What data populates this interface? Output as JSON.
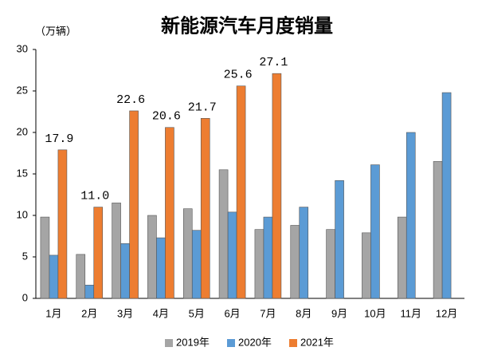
{
  "chart_data": {
    "type": "bar",
    "title": "新能源汽车月度销量",
    "y_label": "（万辆）",
    "categories": [
      "1月",
      "2月",
      "3月",
      "4月",
      "5月",
      "6月",
      "7月",
      "8月",
      "9月",
      "10月",
      "11月",
      "12月"
    ],
    "series": [
      {
        "name": "2019年",
        "color": "#a5a5a5",
        "values": [
          9.8,
          5.3,
          11.5,
          10.0,
          10.8,
          15.5,
          8.3,
          8.8,
          8.3,
          7.9,
          9.8,
          16.5
        ]
      },
      {
        "name": "2020年",
        "color": "#5b9bd5",
        "values": [
          5.2,
          1.6,
          6.6,
          7.3,
          8.2,
          10.4,
          9.8,
          11.0,
          14.2,
          16.1,
          20.0,
          24.8
        ]
      },
      {
        "name": "2021年",
        "color": "#ed7d31",
        "values": [
          17.9,
          11.0,
          22.6,
          20.6,
          21.7,
          25.6,
          27.1,
          null,
          null,
          null,
          null,
          null
        ],
        "value_labels": [
          "17.9",
          "11.0",
          "22.6",
          "20.6",
          "21.7",
          "25.6",
          "27.1",
          null,
          null,
          null,
          null,
          null
        ]
      }
    ],
    "ylim": [
      0,
      30
    ],
    "yticks": [
      0,
      5,
      10,
      15,
      20,
      25,
      30
    ],
    "grid": false,
    "legend": "bottom"
  }
}
